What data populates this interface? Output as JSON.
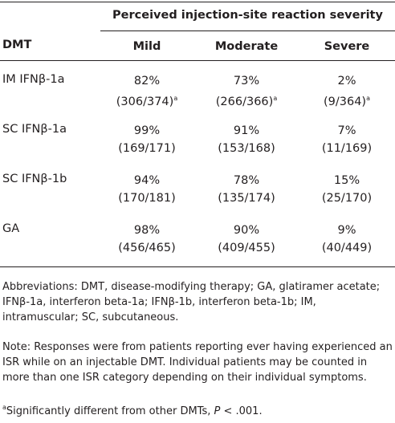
{
  "table": {
    "spanner": "Perceived injection-site reaction severity",
    "headers": [
      "DMT",
      "Mild",
      "Moderate",
      "Severe"
    ],
    "rows": [
      {
        "dmt": "IM IFNβ-1a",
        "cells": [
          {
            "pct": "82%",
            "count": "(306/374)",
            "sup": "a"
          },
          {
            "pct": "73%",
            "count": "(266/366)",
            "sup": "a"
          },
          {
            "pct": "2%",
            "count": "(9/364)",
            "sup": "a"
          }
        ]
      },
      {
        "dmt": "SC IFNβ-1a",
        "cells": [
          {
            "pct": "99%",
            "count": "(169/171)"
          },
          {
            "pct": "91%",
            "count": "(153/168)"
          },
          {
            "pct": "7%",
            "count": "(11/169)"
          }
        ]
      },
      {
        "dmt": "SC IFNβ-1b",
        "cells": [
          {
            "pct": "94%",
            "count": "(170/181)"
          },
          {
            "pct": "78%",
            "count": "(135/174)"
          },
          {
            "pct": "15%",
            "count": "(25/170)"
          }
        ]
      },
      {
        "dmt": "GA",
        "cells": [
          {
            "pct": "98%",
            "count": "(456/465)"
          },
          {
            "pct": "90%",
            "count": "(409/455)"
          },
          {
            "pct": "9%",
            "count": "(40/449)"
          }
        ]
      }
    ]
  },
  "footnotes": {
    "abbreviations": "Abbreviations: DMT, disease-modifying therapy; GA, glatiramer acetate; IFNβ-1a, interferon beta-1a; IFNβ-1b, interferon beta-1b; IM, intramuscular; SC, subcutaneous.",
    "note": "Note: Responses were from patients reporting ever having experienced an ISR while on an injectable DMT. Individual patients may be counted in more than one ISR category depending on their individual symptoms.",
    "significance": {
      "sup": "a",
      "text": "Significantly different from other DMTs, ",
      "p": "P",
      "rest": " < .001."
    }
  }
}
